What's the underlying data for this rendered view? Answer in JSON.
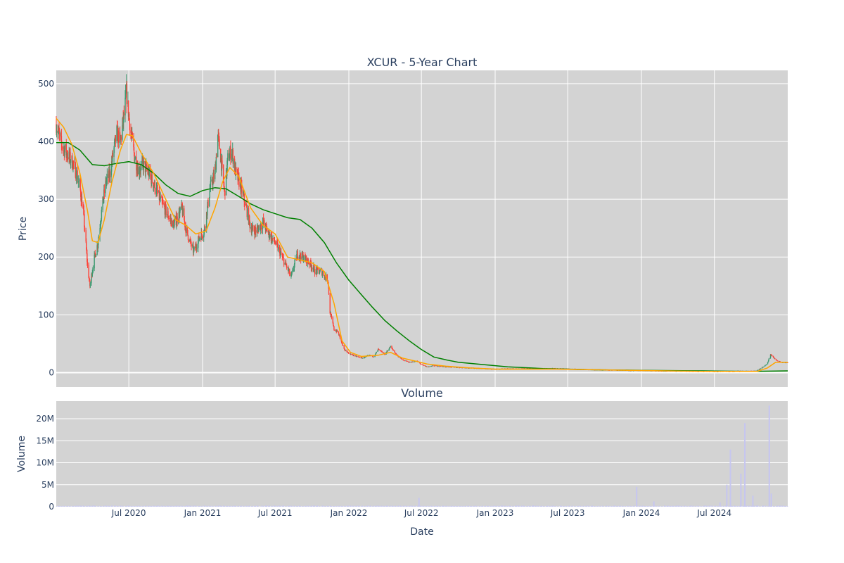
{
  "colors": {
    "plot_bg": "#d3d3d3",
    "grid": "#ffffff",
    "up": "#3d9970",
    "down": "#ff4136",
    "ma_short": "#ffa500",
    "ma_long": "#008000",
    "volume": "#c6c6f0"
  },
  "chart_data": [
    {
      "type": "candlestick",
      "title": "XCUR - 5-Year Chart",
      "xlabel": "",
      "ylabel": "Price",
      "ylim": [
        -25,
        523
      ],
      "xlim": [
        "2020-01-02",
        "2024-12-31"
      ],
      "yticks": [
        0,
        100,
        200,
        300,
        400,
        500
      ],
      "grid": true,
      "price_path": [
        [
          "2020-01-02",
          430
        ],
        [
          "2020-01-15",
          395
        ],
        [
          "2020-02-01",
          375
        ],
        [
          "2020-02-15",
          360
        ],
        [
          "2020-03-01",
          320
        ],
        [
          "2020-03-10",
          275
        ],
        [
          "2020-03-20",
          185
        ],
        [
          "2020-03-26",
          150
        ],
        [
          "2020-04-05",
          195
        ],
        [
          "2020-04-15",
          225
        ],
        [
          "2020-04-25",
          285
        ],
        [
          "2020-05-05",
          330
        ],
        [
          "2020-05-15",
          345
        ],
        [
          "2020-05-22",
          375
        ],
        [
          "2020-06-01",
          415
        ],
        [
          "2020-06-10",
          400
        ],
        [
          "2020-06-20",
          450
        ],
        [
          "2020-06-25",
          485
        ],
        [
          "2020-07-05",
          420
        ],
        [
          "2020-07-15",
          375
        ],
        [
          "2020-07-25",
          350
        ],
        [
          "2020-08-05",
          360
        ],
        [
          "2020-08-20",
          345
        ],
        [
          "2020-09-05",
          320
        ],
        [
          "2020-09-20",
          295
        ],
        [
          "2020-10-05",
          275
        ],
        [
          "2020-10-20",
          255
        ],
        [
          "2020-11-01",
          270
        ],
        [
          "2020-11-10",
          285
        ],
        [
          "2020-11-20",
          250
        ],
        [
          "2020-12-01",
          225
        ],
        [
          "2020-12-10",
          210
        ],
        [
          "2020-12-25",
          235
        ],
        [
          "2021-01-05",
          245
        ],
        [
          "2021-01-20",
          320
        ],
        [
          "2021-02-01",
          345
        ],
        [
          "2021-02-08",
          410
        ],
        [
          "2021-02-15",
          375
        ],
        [
          "2021-02-25",
          310
        ],
        [
          "2021-03-05",
          370
        ],
        [
          "2021-03-15",
          385
        ],
        [
          "2021-03-25",
          345
        ],
        [
          "2021-04-05",
          325
        ],
        [
          "2021-04-20",
          285
        ],
        [
          "2021-05-01",
          250
        ],
        [
          "2021-05-15",
          245
        ],
        [
          "2021-06-01",
          260
        ],
        [
          "2021-06-15",
          240
        ],
        [
          "2021-07-01",
          225
        ],
        [
          "2021-07-15",
          205
        ],
        [
          "2021-08-01",
          180
        ],
        [
          "2021-08-10",
          165
        ],
        [
          "2021-08-25",
          205
        ],
        [
          "2021-09-10",
          200
        ],
        [
          "2021-09-25",
          190
        ],
        [
          "2021-10-10",
          175
        ],
        [
          "2021-10-25",
          175
        ],
        [
          "2021-11-10",
          160
        ],
        [
          "2021-11-15",
          105
        ],
        [
          "2021-11-25",
          75
        ],
        [
          "2021-12-05",
          70
        ],
        [
          "2021-12-20",
          40
        ],
        [
          "2022-01-05",
          32
        ],
        [
          "2022-01-20",
          28
        ],
        [
          "2022-02-05",
          25
        ],
        [
          "2022-02-20",
          30
        ],
        [
          "2022-03-05",
          28
        ],
        [
          "2022-03-15",
          40
        ],
        [
          "2022-04-01",
          32
        ],
        [
          "2022-04-15",
          45
        ],
        [
          "2022-05-01",
          30
        ],
        [
          "2022-05-15",
          22
        ],
        [
          "2022-06-01",
          18
        ],
        [
          "2022-06-20",
          20
        ],
        [
          "2022-07-01",
          14
        ],
        [
          "2022-07-15",
          10
        ],
        [
          "2022-08-01",
          12
        ],
        [
          "2022-09-01",
          10
        ],
        [
          "2022-10-01",
          9
        ],
        [
          "2022-11-01",
          8
        ],
        [
          "2022-12-01",
          7
        ],
        [
          "2023-01-01",
          6
        ],
        [
          "2023-03-01",
          7
        ],
        [
          "2023-06-01",
          7
        ],
        [
          "2023-09-01",
          5
        ],
        [
          "2023-12-01",
          4
        ],
        [
          "2024-03-01",
          3
        ],
        [
          "2024-06-01",
          2
        ],
        [
          "2024-08-01",
          2
        ],
        [
          "2024-10-15",
          3
        ],
        [
          "2024-11-10",
          15
        ],
        [
          "2024-11-18",
          32
        ],
        [
          "2024-12-01",
          22
        ],
        [
          "2024-12-15",
          18
        ],
        [
          "2024-12-31",
          17
        ]
      ],
      "series": [
        {
          "kind": "moving_average_short",
          "values": [
            [
              "2020-01-02",
              440
            ],
            [
              "2020-01-20",
              425
            ],
            [
              "2020-02-10",
              395
            ],
            [
              "2020-03-01",
              345
            ],
            [
              "2020-03-20",
              280
            ],
            [
              "2020-04-01",
              228
            ],
            [
              "2020-04-15",
              225
            ],
            [
              "2020-05-01",
              265
            ],
            [
              "2020-05-20",
              330
            ],
            [
              "2020-06-10",
              385
            ],
            [
              "2020-06-25",
              412
            ],
            [
              "2020-07-10",
              410
            ],
            [
              "2020-08-01",
              380
            ],
            [
              "2020-09-01",
              345
            ],
            [
              "2020-10-01",
              300
            ],
            [
              "2020-10-25",
              265
            ],
            [
              "2020-11-20",
              255
            ],
            [
              "2020-12-15",
              240
            ],
            [
              "2021-01-10",
              245
            ],
            [
              "2021-02-01",
              285
            ],
            [
              "2021-02-20",
              330
            ],
            [
              "2021-03-10",
              355
            ],
            [
              "2021-04-01",
              340
            ],
            [
              "2021-05-01",
              285
            ],
            [
              "2021-06-01",
              255
            ],
            [
              "2021-07-01",
              240
            ],
            [
              "2021-08-01",
              200
            ],
            [
              "2021-09-01",
              195
            ],
            [
              "2021-10-01",
              190
            ],
            [
              "2021-11-01",
              175
            ],
            [
              "2021-11-25",
              120
            ],
            [
              "2021-12-15",
              55
            ],
            [
              "2022-01-05",
              35
            ],
            [
              "2022-02-01",
              28
            ],
            [
              "2022-03-15",
              30
            ],
            [
              "2022-04-15",
              35
            ],
            [
              "2022-05-15",
              25
            ],
            [
              "2022-06-15",
              20
            ],
            [
              "2022-07-15",
              15
            ],
            [
              "2022-09-01",
              11
            ],
            [
              "2022-11-01",
              8
            ],
            [
              "2023-01-01",
              6
            ],
            [
              "2023-06-01",
              6
            ],
            [
              "2023-12-01",
              4
            ],
            [
              "2024-06-01",
              2
            ],
            [
              "2024-10-15",
              2
            ],
            [
              "2024-11-10",
              8
            ],
            [
              "2024-12-01",
              18
            ],
            [
              "2024-12-31",
              18
            ]
          ]
        },
        {
          "kind": "moving_average_long",
          "values": [
            [
              "2020-01-02",
              398
            ],
            [
              "2020-02-01",
              398
            ],
            [
              "2020-03-01",
              385
            ],
            [
              "2020-04-01",
              360
            ],
            [
              "2020-05-01",
              358
            ],
            [
              "2020-06-01",
              362
            ],
            [
              "2020-07-01",
              365
            ],
            [
              "2020-08-01",
              360
            ],
            [
              "2020-09-01",
              345
            ],
            [
              "2020-10-01",
              325
            ],
            [
              "2020-11-01",
              310
            ],
            [
              "2020-12-01",
              305
            ],
            [
              "2021-01-01",
              315
            ],
            [
              "2021-02-01",
              320
            ],
            [
              "2021-03-01",
              318
            ],
            [
              "2021-04-01",
              305
            ],
            [
              "2021-05-01",
              292
            ],
            [
              "2021-06-01",
              282
            ],
            [
              "2021-07-01",
              275
            ],
            [
              "2021-08-01",
              268
            ],
            [
              "2021-09-01",
              265
            ],
            [
              "2021-10-01",
              250
            ],
            [
              "2021-11-01",
              225
            ],
            [
              "2021-12-01",
              190
            ],
            [
              "2022-01-01",
              160
            ],
            [
              "2022-02-01",
              135
            ],
            [
              "2022-03-01",
              113
            ],
            [
              "2022-04-01",
              90
            ],
            [
              "2022-05-01",
              72
            ],
            [
              "2022-06-01",
              55
            ],
            [
              "2022-07-01",
              40
            ],
            [
              "2022-08-01",
              27
            ],
            [
              "2022-09-01",
              22
            ],
            [
              "2022-10-01",
              18
            ],
            [
              "2022-12-01",
              14
            ],
            [
              "2023-02-01",
              10
            ],
            [
              "2023-05-01",
              7
            ],
            [
              "2023-09-01",
              5
            ],
            [
              "2024-01-01",
              4
            ],
            [
              "2024-06-01",
              3
            ],
            [
              "2024-10-01",
              2
            ],
            [
              "2024-12-31",
              3
            ]
          ]
        }
      ]
    },
    {
      "type": "bar",
      "title": "Volume",
      "xlabel": "Date",
      "ylabel": "Volume",
      "ylim": [
        0,
        24000000
      ],
      "yticks": [
        0,
        5000000,
        10000000,
        15000000,
        20000000
      ],
      "ytick_labels": [
        "0",
        "5M",
        "10M",
        "15M",
        "20M"
      ],
      "xticks": [
        "2020-07-01",
        "2021-01-01",
        "2021-07-01",
        "2022-01-01",
        "2022-07-01",
        "2023-01-01",
        "2023-07-01",
        "2024-01-01",
        "2024-07-01"
      ],
      "xtick_labels": [
        "Jul 2020",
        "Jan 2021",
        "Jul 2021",
        "Jan 2022",
        "Jul 2022",
        "Jan 2023",
        "Jul 2023",
        "Jan 2024",
        "Jul 2024"
      ],
      "grid": true,
      "spikes": [
        [
          "2022-06-25",
          2000000
        ],
        [
          "2023-12-20",
          4500000
        ],
        [
          "2024-02-01",
          1200000
        ],
        [
          "2024-07-15",
          1000000
        ],
        [
          "2024-08-01",
          5000000
        ],
        [
          "2024-08-10",
          13000000
        ],
        [
          "2024-09-05",
          7500000
        ],
        [
          "2024-09-15",
          19000000
        ],
        [
          "2024-10-05",
          2500000
        ],
        [
          "2024-11-15",
          23000000
        ],
        [
          "2024-11-20",
          3000000
        ]
      ]
    }
  ]
}
